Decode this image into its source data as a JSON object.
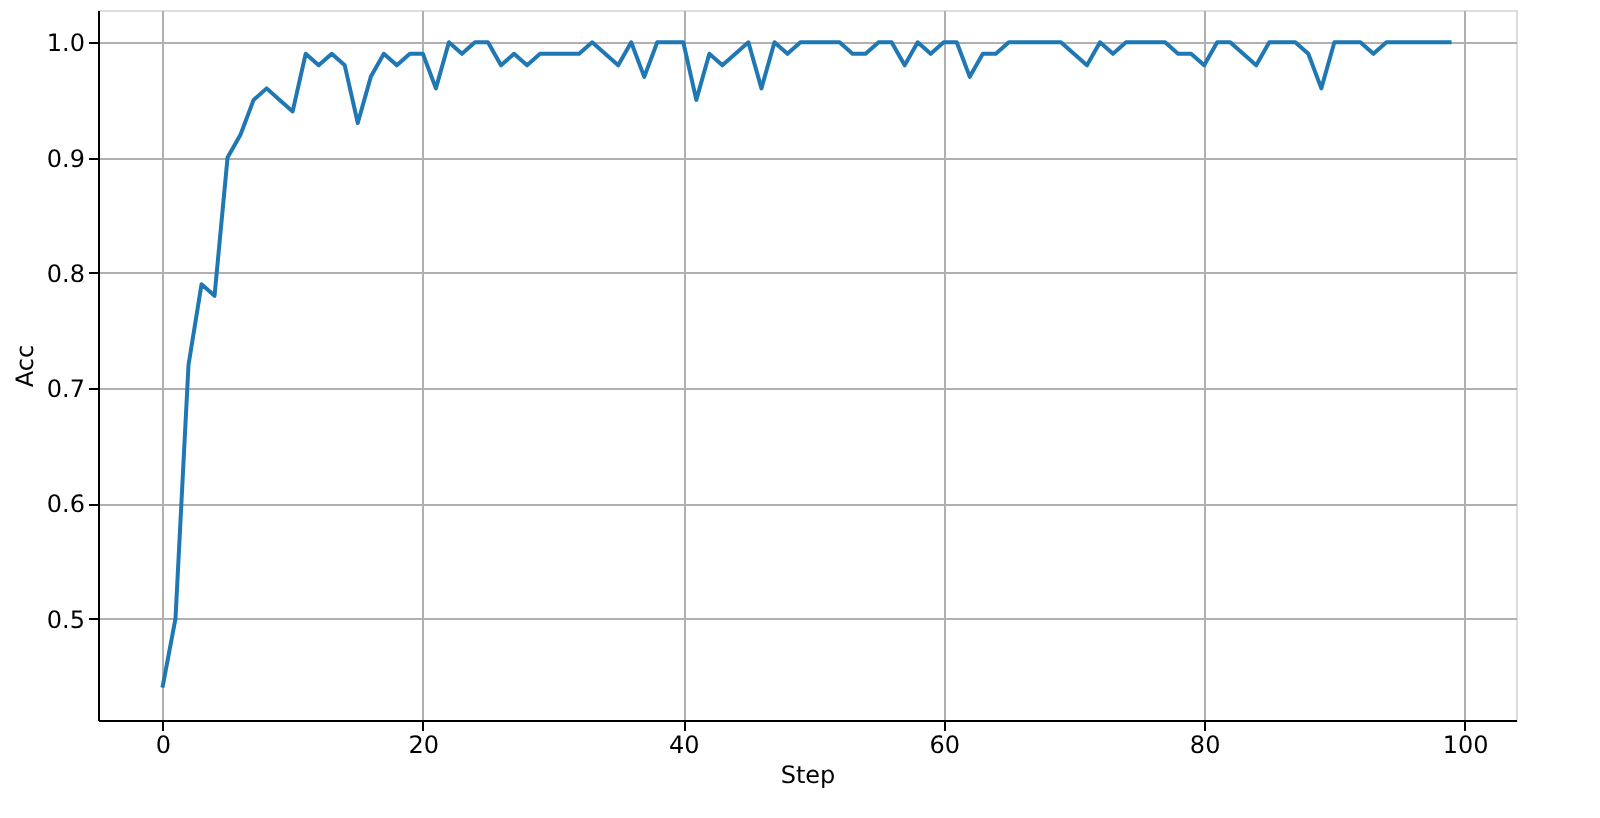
{
  "chart_data": {
    "type": "line",
    "xlabel": "Step",
    "ylabel": "Acc",
    "x": [
      0,
      1,
      2,
      3,
      4,
      5,
      6,
      7,
      8,
      9,
      10,
      11,
      12,
      13,
      14,
      15,
      16,
      17,
      18,
      19,
      20,
      21,
      22,
      23,
      24,
      25,
      26,
      27,
      28,
      29,
      30,
      31,
      32,
      33,
      34,
      35,
      36,
      37,
      38,
      39,
      40,
      41,
      42,
      43,
      44,
      45,
      46,
      47,
      48,
      49,
      50,
      51,
      52,
      53,
      54,
      55,
      56,
      57,
      58,
      59,
      60,
      61,
      62,
      63,
      64,
      65,
      66,
      67,
      68,
      69,
      70,
      71,
      72,
      73,
      74,
      75,
      76,
      77,
      78,
      79,
      80,
      81,
      82,
      83,
      84,
      85,
      86,
      87,
      88,
      89,
      90,
      91,
      92,
      93,
      94,
      95,
      96,
      97,
      98,
      99
    ],
    "series": [
      {
        "color": "#1f77b4",
        "values": [
          0.44,
          0.5,
          0.72,
          0.79,
          0.78,
          0.9,
          0.92,
          0.95,
          0.96,
          0.95,
          0.94,
          0.99,
          0.98,
          0.99,
          0.98,
          0.93,
          0.97,
          0.99,
          0.98,
          0.99,
          0.99,
          0.96,
          1.0,
          0.99,
          1.0,
          1.0,
          0.98,
          0.99,
          0.98,
          0.99,
          0.99,
          0.99,
          0.99,
          1.0,
          0.99,
          0.98,
          1.0,
          0.97,
          1.0,
          1.0,
          1.0,
          0.95,
          0.99,
          0.98,
          0.99,
          1.0,
          0.96,
          1.0,
          0.99,
          1.0,
          1.0,
          1.0,
          1.0,
          0.99,
          0.99,
          1.0,
          1.0,
          0.98,
          1.0,
          0.99,
          1.0,
          1.0,
          0.97,
          0.99,
          0.99,
          1.0,
          1.0,
          1.0,
          1.0,
          1.0,
          0.99,
          0.98,
          1.0,
          0.99,
          1.0,
          1.0,
          1.0,
          1.0,
          0.99,
          0.99,
          0.98,
          1.0,
          1.0,
          0.99,
          0.98,
          1.0,
          1.0,
          1.0,
          0.99,
          0.96,
          1.0,
          1.0,
          1.0,
          0.99,
          1.0,
          1.0,
          1.0,
          1.0,
          1.0,
          1.0
        ]
      }
    ],
    "xlim": [
      -4.95,
      103.95
    ],
    "xticks": [
      0,
      20,
      40,
      60,
      80,
      100
    ],
    "ylim": [
      0.412,
      1.028
    ],
    "yticks": [
      {
        "value": 0.5,
        "label": "0.5"
      },
      {
        "value": 0.6,
        "label": "0.6"
      },
      {
        "value": 0.7,
        "label": "0.7"
      },
      {
        "value": 0.8,
        "label": "0.8"
      },
      {
        "value": 0.9,
        "label": "0.9"
      },
      {
        "value": 1.0,
        "label": "1.0"
      }
    ],
    "grid": true,
    "legend": false,
    "marker": "none",
    "line_style": "solid"
  }
}
